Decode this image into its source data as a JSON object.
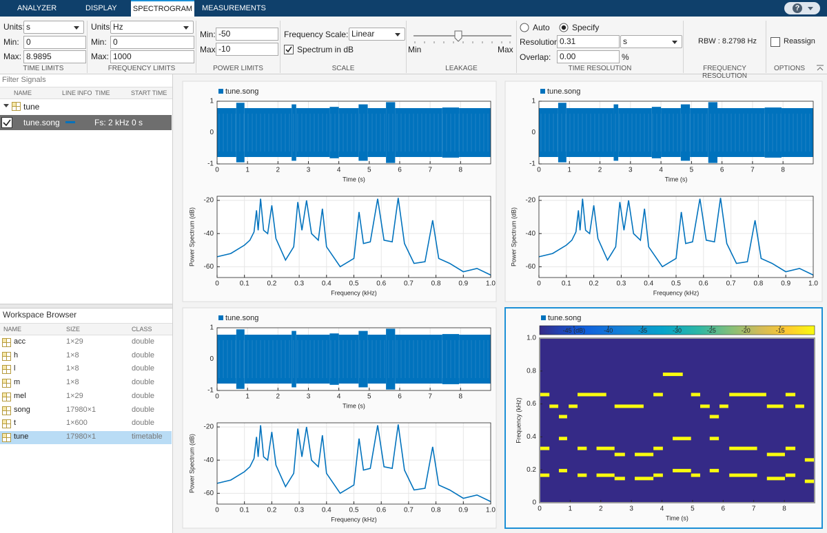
{
  "tabs": [
    "ANALYZER",
    "DISPLAY",
    "SPECTROGRAM",
    "MEASUREMENTS"
  ],
  "help": "?",
  "toolstrip": {
    "time_limits": {
      "units_label": "Units:",
      "units": "s",
      "min_label": "Min:",
      "min": "0",
      "max_label": "Max:",
      "max": "8.9895",
      "title": "TIME LIMITS"
    },
    "frequency_limits": {
      "units_label": "Units:",
      "units": "Hz",
      "min_label": "Min:",
      "min": "0",
      "max_label": "Max:",
      "max": "1000",
      "title": "FREQUENCY LIMITS"
    },
    "power_limits": {
      "min_label": "Min:",
      "min": "-50",
      "max_label": "Max:",
      "max": "-10",
      "title": "POWER LIMITS"
    },
    "scale": {
      "frequency_scale_label": "Frequency Scale:",
      "frequency_scale": "Linear",
      "spectrum_in_db": "Spectrum in dB",
      "title": "SCALE"
    },
    "leakage": {
      "min": "Min",
      "max": "Max",
      "title": "LEAKAGE"
    },
    "time_resolution": {
      "auto": "Auto",
      "specify": "Specify",
      "resolution_label": "Resolution:",
      "resolution": "0.31",
      "resolution_units": "s",
      "overlap_label": "Overlap:",
      "overlap": "0.00",
      "overlap_units": "%",
      "title": "TIME RESOLUTION"
    },
    "frequency_resolution": {
      "rbw": "RBW : 8.2798 Hz",
      "title": "FREQUENCY RESOLUTION"
    },
    "options": {
      "reassign": "Reassign",
      "title": "OPTIONS"
    }
  },
  "filter_signals": {
    "placeholder": "Filter Signals",
    "columns": [
      "NAME",
      "LINE",
      "INFO",
      "TIME",
      "START TIME"
    ],
    "group": "tune",
    "signal": {
      "name": "tune.song",
      "time": "Fs: 2 kHz",
      "start_time": "0 s"
    }
  },
  "workspace": {
    "title": "Workspace Browser",
    "columns": [
      "NAME",
      "SIZE",
      "CLASS"
    ],
    "rows": [
      [
        "acc",
        "1×29",
        "double"
      ],
      [
        "h",
        "1×8",
        "double"
      ],
      [
        "l",
        "1×8",
        "double"
      ],
      [
        "m",
        "1×8",
        "double"
      ],
      [
        "mel",
        "1×29",
        "double"
      ],
      [
        "song",
        "17980×1",
        "double"
      ],
      [
        "t",
        "1×600",
        "double"
      ],
      [
        "tune",
        "17980×1",
        "timetable"
      ]
    ]
  },
  "chart_data": [
    {
      "type": "waveform",
      "legend": "tune.song",
      "color": "#0072bd",
      "xlabel": "Time (s)",
      "grid": true,
      "xlim": [
        0,
        8.9895
      ],
      "xticks": [
        0,
        1,
        2,
        3,
        4,
        5,
        6,
        7,
        8
      ],
      "ylim": [
        -1,
        1
      ],
      "yticks": [
        -1,
        0,
        1
      ],
      "segments": [
        [
          0,
          0.63,
          0.78
        ],
        [
          0.63,
          0.9,
          0.95
        ],
        [
          0.9,
          2.45,
          0.78
        ],
        [
          2.45,
          2.6,
          0.9
        ],
        [
          2.6,
          3.7,
          0.78
        ],
        [
          3.7,
          4.0,
          0.82
        ],
        [
          4.0,
          4.65,
          0.78
        ],
        [
          4.65,
          4.95,
          0.9
        ],
        [
          4.95,
          5.55,
          0.78
        ],
        [
          5.55,
          5.85,
          0.97
        ],
        [
          5.85,
          7.4,
          0.78
        ],
        [
          7.4,
          7.95,
          0.8
        ],
        [
          7.95,
          8.9895,
          0.78
        ]
      ]
    },
    {
      "type": "line",
      "legend": "tune.song",
      "color": "#0072bd",
      "xlabel": "Frequency (kHz)",
      "ylabel": "Power Spectrum (dB)",
      "grid": true,
      "xlim": [
        0,
        1
      ],
      "xticks": [
        0,
        0.1,
        0.2,
        0.3,
        0.4,
        0.5,
        0.6,
        0.7,
        0.8,
        0.9,
        {
          "value": 1,
          "label": "1.0"
        }
      ],
      "ylim": [
        -66.5,
        -17.5
      ],
      "yticks": [
        -60,
        -40,
        -20
      ],
      "x": [
        0,
        0.05,
        0.1,
        0.12,
        0.135,
        0.144,
        0.15,
        0.159,
        0.17,
        0.185,
        0.2,
        0.215,
        0.25,
        0.28,
        0.295,
        0.31,
        0.327,
        0.345,
        0.37,
        0.385,
        0.4,
        0.45,
        0.5,
        0.519,
        0.535,
        0.56,
        0.587,
        0.61,
        0.64,
        0.662,
        0.685,
        0.72,
        0.76,
        0.788,
        0.81,
        0.85,
        0.9,
        0.95,
        1.0
      ],
      "values": [
        -54,
        -52,
        -47,
        -44,
        -39,
        -26,
        -38,
        -19,
        -38,
        -40,
        -23,
        -43,
        -56,
        -48,
        -21,
        -38,
        -20,
        -40,
        -44,
        -25,
        -48,
        -60,
        -55,
        -27,
        -46,
        -45,
        -19,
        -44,
        -45,
        -18.5,
        -46,
        -58,
        -57,
        -32,
        -55,
        -58,
        -63,
        -61,
        -65
      ]
    },
    {
      "type": "spectrogram",
      "legend": "tune.song",
      "xlabel": "Time (s)",
      "ylabel": "Frequency (kHz)",
      "low_color": "#352a87",
      "high_color": "#f9fb0e",
      "xlim": [
        0,
        8.9895
      ],
      "xticks": [
        0,
        1,
        2,
        3,
        4,
        5,
        6,
        7,
        8
      ],
      "ylim": [
        0,
        1
      ],
      "yticks": [
        0,
        0.2,
        0.4,
        0.6,
        0.8,
        {
          "value": 1,
          "label": "1.0"
        }
      ],
      "clim": [
        -50,
        -10
      ],
      "cticks": [
        {
          "value": -45,
          "label": "-45 (dB)"
        },
        -40,
        -35,
        -30,
        -25,
        -20,
        -15
      ],
      "segments": [
        [
          0,
          0.32,
          0.657
        ],
        [
          0.32,
          0.61,
          0.586
        ],
        [
          0.63,
          0.9,
          0.523
        ],
        [
          0.95,
          1.24,
          0.586
        ],
        [
          1.24,
          2.18,
          0.657
        ],
        [
          2.45,
          3.4,
          0.586
        ],
        [
          3.72,
          4.03,
          0.657
        ],
        [
          4.03,
          4.68,
          0.78
        ],
        [
          4.95,
          5.25,
          0.657
        ],
        [
          5.25,
          5.56,
          0.586
        ],
        [
          5.56,
          5.86,
          0.523
        ],
        [
          5.88,
          6.17,
          0.586
        ],
        [
          6.2,
          7.41,
          0.657
        ],
        [
          7.43,
          7.97,
          0.586
        ],
        [
          8.04,
          8.36,
          0.657
        ],
        [
          8.36,
          8.65,
          0.586
        ],
        [
          0,
          0.32,
          0.33
        ],
        [
          0.63,
          0.9,
          0.39
        ],
        [
          1.24,
          1.54,
          0.33
        ],
        [
          1.86,
          2.45,
          0.33
        ],
        [
          2.45,
          2.79,
          0.293
        ],
        [
          3.11,
          3.72,
          0.293
        ],
        [
          3.72,
          4.03,
          0.33
        ],
        [
          4.35,
          4.95,
          0.39
        ],
        [
          5.56,
          5.86,
          0.39
        ],
        [
          6.2,
          7.11,
          0.33
        ],
        [
          7.43,
          8.02,
          0.293
        ],
        [
          8.04,
          8.36,
          0.33
        ],
        [
          8.67,
          8.9895,
          0.26
        ],
        [
          0,
          0.32,
          0.167
        ],
        [
          0.63,
          0.9,
          0.195
        ],
        [
          1.24,
          1.54,
          0.167
        ],
        [
          1.86,
          2.45,
          0.167
        ],
        [
          2.45,
          2.79,
          0.147
        ],
        [
          3.11,
          3.72,
          0.147
        ],
        [
          3.72,
          4.03,
          0.167
        ],
        [
          4.35,
          4.95,
          0.195
        ],
        [
          4.95,
          5.25,
          0.167
        ],
        [
          5.56,
          5.86,
          0.195
        ],
        [
          6.2,
          7.11,
          0.167
        ],
        [
          7.43,
          8.02,
          0.147
        ],
        [
          8.04,
          8.36,
          0.167
        ],
        [
          8.67,
          8.9895,
          0.13
        ]
      ]
    }
  ]
}
